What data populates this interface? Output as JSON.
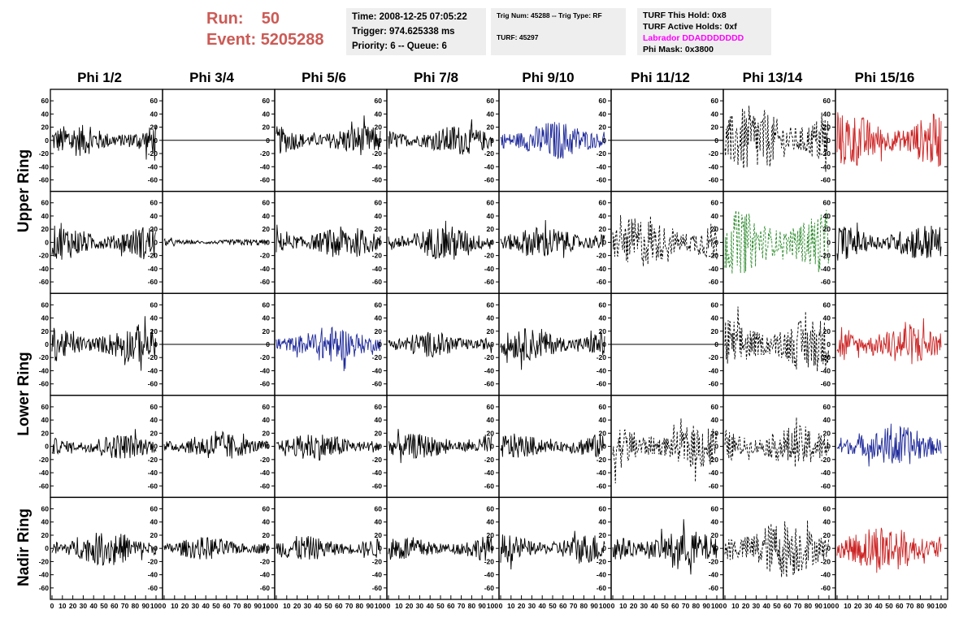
{
  "header": {
    "run_label": "Run:",
    "run_value": "50",
    "event_label": "Event:",
    "event_value": "5205288",
    "time_line": "Time: 2008-12-25 07:05:22",
    "trigger_line": "Trigger: 974.625338 ms",
    "priority_line": "Priority: 6 -- Queue: 6",
    "trig_num_line": "Trig Num: 45288 -- Trig Type: RF",
    "turf_line": "TURF: 45297",
    "turf_hold_line": "TURF This Hold: 0x8",
    "turf_active_line": "TURF Active Holds: 0xf",
    "labrador_line": "Labrador DDADDDDDDD",
    "phi_mask_line": "Phi Mask: 0x3800"
  },
  "colors": {
    "run_text": "#cc5a55",
    "labrador_text": "#ff00ff",
    "blue_trace": "#1f2a9a",
    "red_trace": "#cc2222",
    "green_trace": "#2a8a2a",
    "black_trace": "#000000"
  },
  "columns": [
    "Phi 1/2",
    "Phi 3/4",
    "Phi 5/6",
    "Phi 7/8",
    "Phi 9/10",
    "Phi 11/12",
    "Phi 13/14",
    "Phi 15/16"
  ],
  "row_labels": [
    "Upper Ring",
    "Lower Ring",
    "Nadir Ring"
  ],
  "chart_data": {
    "type": "line",
    "ylim": [
      -70,
      70
    ],
    "y_ticks": [
      "60",
      "40",
      "20",
      "0",
      "-20",
      "-40",
      "-60"
    ],
    "xlim": [
      0,
      100
    ],
    "x_ticks": [
      "0",
      "10",
      "20",
      "30",
      "40",
      "50",
      "60",
      "70",
      "80",
      "90",
      "100"
    ],
    "rows": [
      {
        "panels": [
          {
            "color": "black",
            "style": "solid",
            "amp": 14
          },
          {
            "color": "black",
            "style": "flat",
            "amp": 0
          },
          {
            "color": "black",
            "style": "solid",
            "amp": 13
          },
          {
            "color": "black",
            "style": "solid",
            "amp": 13
          },
          {
            "color": "blue",
            "style": "solid",
            "amp": 17
          },
          {
            "color": "black",
            "style": "flat",
            "amp": 0
          },
          {
            "color": "black",
            "style": "dashed",
            "amp": 30
          },
          {
            "color": "red",
            "style": "solid",
            "amp": 24
          }
        ]
      },
      {
        "panels": [
          {
            "color": "black",
            "style": "solid",
            "amp": 15
          },
          {
            "color": "black",
            "style": "solid",
            "amp": 3
          },
          {
            "color": "black",
            "style": "solid",
            "amp": 14
          },
          {
            "color": "black",
            "style": "solid",
            "amp": 15
          },
          {
            "color": "black",
            "style": "solid",
            "amp": 14
          },
          {
            "color": "black",
            "style": "dashed",
            "amp": 22
          },
          {
            "color": "green",
            "style": "dashed",
            "amp": 28
          },
          {
            "color": "black",
            "style": "solid",
            "amp": 16
          }
        ]
      },
      {
        "panels": [
          {
            "color": "black",
            "style": "solid",
            "amp": 16
          },
          {
            "color": "black",
            "style": "flat",
            "amp": 0
          },
          {
            "color": "blue",
            "style": "solid",
            "amp": 16
          },
          {
            "color": "black",
            "style": "solid",
            "amp": 11
          },
          {
            "color": "black",
            "style": "solid",
            "amp": 14
          },
          {
            "color": "black",
            "style": "flat",
            "amp": 0
          },
          {
            "color": "black",
            "style": "dashed",
            "amp": 24
          },
          {
            "color": "red",
            "style": "solid",
            "amp": 18
          }
        ]
      },
      {
        "panels": [
          {
            "color": "black",
            "style": "solid",
            "amp": 11
          },
          {
            "color": "black",
            "style": "solid",
            "amp": 12
          },
          {
            "color": "black",
            "style": "solid",
            "amp": 12
          },
          {
            "color": "black",
            "style": "solid",
            "amp": 11
          },
          {
            "color": "black",
            "style": "solid",
            "amp": 11
          },
          {
            "color": "black",
            "style": "dashed",
            "amp": 20
          },
          {
            "color": "black",
            "style": "dashed",
            "amp": 18
          },
          {
            "color": "blue",
            "style": "solid",
            "amp": 18
          }
        ]
      },
      {
        "panels": [
          {
            "color": "black",
            "style": "solid",
            "amp": 15
          },
          {
            "color": "black",
            "style": "solid",
            "amp": 10
          },
          {
            "color": "black",
            "style": "solid",
            "amp": 11
          },
          {
            "color": "black",
            "style": "solid",
            "amp": 11
          },
          {
            "color": "black",
            "style": "solid",
            "amp": 13
          },
          {
            "color": "black",
            "style": "solid",
            "amp": 16
          },
          {
            "color": "black",
            "style": "dashed",
            "amp": 26
          },
          {
            "color": "red",
            "style": "solid",
            "amp": 22
          }
        ]
      }
    ]
  }
}
